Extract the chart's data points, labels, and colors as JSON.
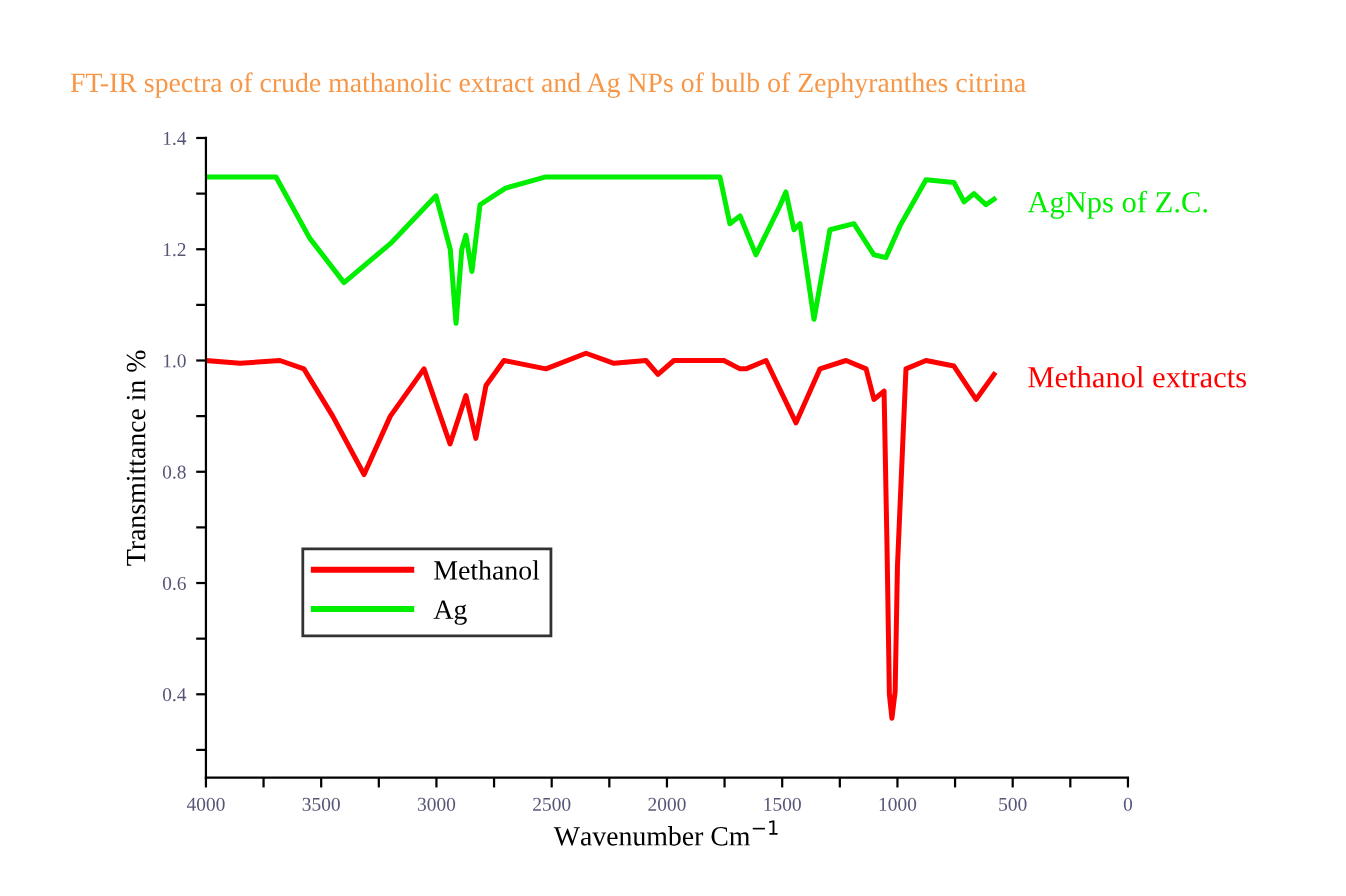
{
  "chart_data": {
    "type": "line",
    "title": "FT-IR spectra of crude mathanolic extract and Ag NPs of bulb of Zephyranthes citrina",
    "xlabel": "Wavenumber Cm$^{−1}$",
    "ylabel": "Transmittance in %",
    "xlim": [
      4000,
      0
    ],
    "ylim": [
      0.25,
      1.4
    ],
    "xticks": [
      4000,
      {
        "value": 3750,
        "label": null
      },
      3500,
      {
        "value": 3250,
        "label": null
      },
      3000,
      {
        "value": 2750,
        "label": null
      },
      2500,
      {
        "value": 2250,
        "label": null
      },
      2000,
      {
        "value": 1750,
        "label": null
      },
      1500,
      {
        "value": 1250,
        "label": null
      },
      1000,
      {
        "value": 750,
        "label": null
      },
      500,
      {
        "value": 250,
        "label": null
      },
      0
    ],
    "yticks": [
      {
        "value": 0.3,
        "label": null
      },
      0.4,
      {
        "value": 0.5,
        "label": null
      },
      0.6,
      {
        "value": 0.7,
        "label": null
      },
      0.8,
      {
        "value": 0.9,
        "label": null
      },
      {
        "value": 1.0,
        "label": "1.0"
      },
      {
        "value": 1.1,
        "label": null
      },
      1.2,
      {
        "value": 1.3,
        "label": null
      },
      1.4
    ],
    "grid": false,
    "legend": "bottom left",
    "marker": "none",
    "line_style": "solid",
    "annotations": [
      "AgNps of Z.C.",
      "Methanol extracts"
    ],
    "series": [
      {
        "name": "Methanol",
        "color": "#ff0000",
        "x": [
          4000,
          3852,
          3679,
          3575,
          3450,
          3314,
          3200,
          3054,
          2941,
          2872,
          2829,
          2785,
          2707,
          2525,
          2351,
          2230,
          2091,
          2039,
          1970,
          1753,
          1683,
          1657,
          1570,
          1440,
          1336,
          1223,
          1136,
          1102,
          1058,
          1045,
          1035,
          1024,
          1010,
          1000,
          963,
          876,
          755,
          659,
          581
        ],
        "values": [
          1.0,
          0.995,
          1.0,
          0.985,
          0.9,
          0.795,
          0.9,
          0.985,
          0.85,
          0.937,
          0.86,
          0.955,
          1.0,
          0.985,
          1.013,
          0.995,
          1.0,
          0.975,
          1.0,
          1.0,
          0.985,
          0.985,
          1.0,
          0.888,
          0.985,
          1.0,
          0.985,
          0.93,
          0.945,
          0.66,
          0.4,
          0.357,
          0.405,
          0.63,
          0.985,
          1.0,
          0.99,
          0.93,
          0.975
        ]
      },
      {
        "name": "Ag",
        "color": "#00ee00",
        "x": [
          4000,
          3696,
          3550,
          3401,
          3200,
          3002,
          2940,
          2915,
          2890,
          2872,
          2846,
          2811,
          2700,
          2525,
          1770,
          1727,
          1683,
          1614,
          1510,
          1484,
          1449,
          1423,
          1362,
          1293,
          1189,
          1102,
          1050,
          989,
          876,
          755,
          711,
          668,
          616,
          581
        ],
        "values": [
          1.33,
          1.33,
          1.22,
          1.14,
          1.21,
          1.296,
          1.2,
          1.067,
          1.2,
          1.225,
          1.16,
          1.28,
          1.31,
          1.33,
          1.33,
          1.246,
          1.26,
          1.19,
          1.278,
          1.303,
          1.235,
          1.246,
          1.074,
          1.235,
          1.246,
          1.19,
          1.185,
          1.242,
          1.325,
          1.32,
          1.285,
          1.3,
          1.28,
          1.29
        ]
      }
    ]
  }
}
